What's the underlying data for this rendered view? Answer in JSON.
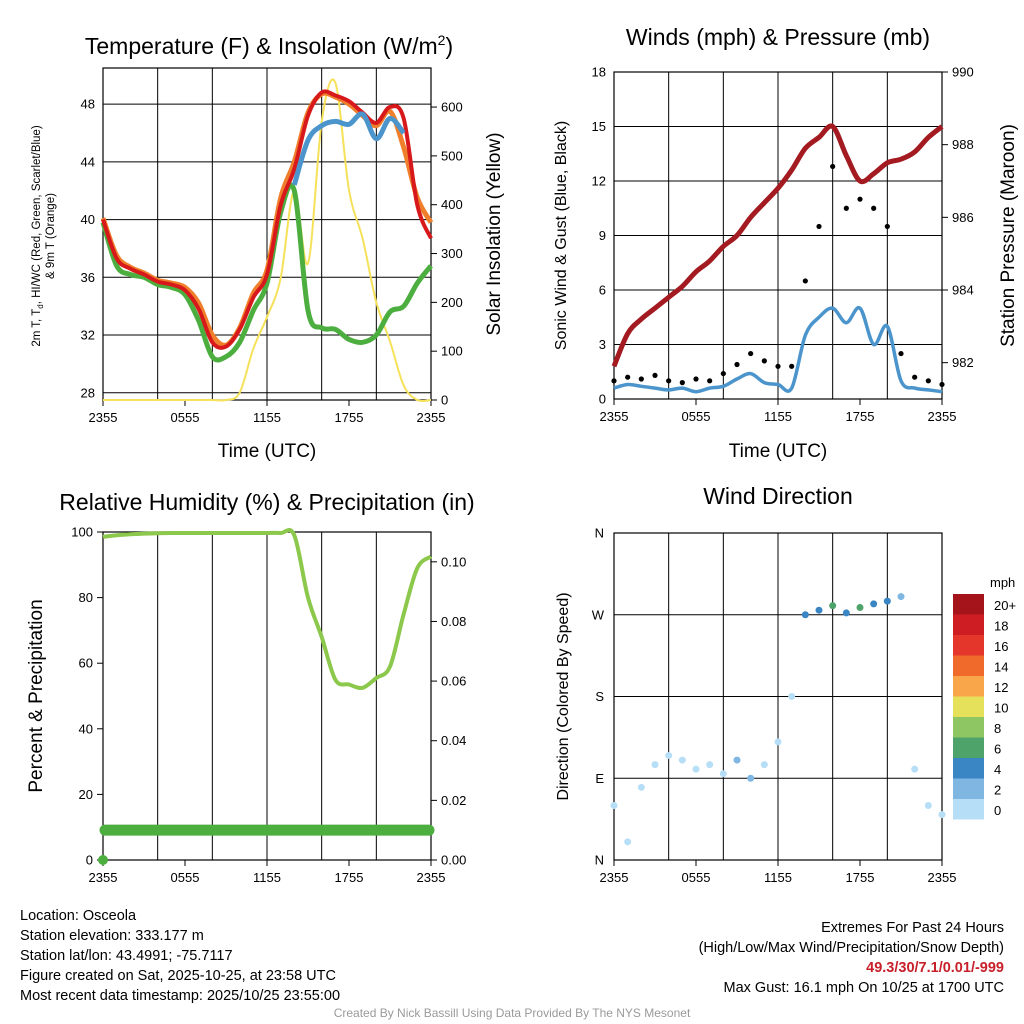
{
  "x_ticks": [
    "2355",
    "0555",
    "1155",
    "1755",
    "2355"
  ],
  "charts": {
    "temperature": {
      "type": "line",
      "title_main": "Temperature (F) & Insolation (W/m",
      "title_sup": "2",
      "title_close": ")",
      "xlabel": "Time (UTC)",
      "ylabel_left_1": "2m T, T",
      "ylabel_left_sub": "d",
      "ylabel_left_2": ", HI/WC (Red, Green, Scarlet/Blue)",
      "ylabel_left_3": "& 9m T (Orange)",
      "ylabel_right": "Solar Insolation (Yellow)",
      "ylim_left": [
        27.5,
        50.5
      ],
      "yticks_left": [
        28,
        32,
        36,
        40,
        44,
        48
      ],
      "ylim_right": [
        0,
        680
      ],
      "yticks_right": [
        0,
        100,
        200,
        300,
        400,
        500,
        600
      ],
      "colors": {
        "temp_2m": "#d7191c",
        "dewpoint": "#4cae3f",
        "heat_index": "#4b95cc",
        "temp_9m": "#f07f2b",
        "solar": "#f5e15a"
      }
    },
    "winds": {
      "type": "line",
      "title": "Winds (mph) & Pressure (mb)",
      "xlabel": "Time (UTC)",
      "ylabel_left": "Sonic Wind & Gust (Blue, Black)",
      "ylabel_right": "Station Pressure (Maroon)",
      "ylim_left": [
        0,
        18
      ],
      "yticks_left": [
        0,
        3,
        6,
        9,
        12,
        15,
        18
      ],
      "ylim_right": [
        981,
        990
      ],
      "yticks_right": [
        982,
        984,
        986,
        988,
        990
      ],
      "colors": {
        "wind": "#4b95cc",
        "gust": "#000000",
        "pressure": "#a31b20"
      }
    },
    "humidity": {
      "type": "line",
      "title": "Relative Humidity (%) & Precipitation (in)",
      "ylabel_left": "Percent & Precipitation",
      "ylim_left": [
        0,
        100
      ],
      "yticks_left": [
        0,
        20,
        40,
        60,
        80,
        100
      ],
      "ylim_right": [
        0,
        0.11
      ],
      "yticks_right": [
        "0.00",
        "0.02",
        "0.04",
        "0.06",
        "0.08",
        "0.10"
      ],
      "precip_value": 0.01,
      "colors": {
        "rh": "#8cc84b",
        "precip": "#4cae3f"
      }
    },
    "direction": {
      "type": "scatter",
      "title": "Wind Direction",
      "ylabel_left": "Direction (Colored By Speed)",
      "ylim_deg": [
        0,
        360
      ],
      "yticks": [
        "N",
        "E",
        "S",
        "W",
        "N"
      ],
      "legend_title": "mph",
      "legend_labels": [
        "20+",
        "18",
        "16",
        "14",
        "12",
        "10",
        "8",
        "6",
        "4",
        "2",
        "0"
      ],
      "legend_colors": [
        "#a5141b",
        "#cf1e23",
        "#e4362b",
        "#f06a2c",
        "#f9a54a",
        "#e6e15a",
        "#8dc663",
        "#4ea36a",
        "#3a85c4",
        "#7fb6e2",
        "#b7def7"
      ]
    }
  },
  "chart_data": [
    {
      "type": "line",
      "title": "Temperature (F) & Insolation (W/m2)",
      "x": [
        0,
        1,
        2,
        3,
        4,
        5,
        6,
        7,
        8,
        9,
        10,
        11,
        12,
        13,
        14,
        15,
        16,
        17,
        18,
        19,
        20,
        21,
        22,
        23,
        24
      ],
      "series": [
        {
          "name": "2m T (Red)",
          "values": [
            40.0,
            37.3,
            36.6,
            36.2,
            35.7,
            35.5,
            35.1,
            33.8,
            31.5,
            31.2,
            32.4,
            34.6,
            36.2,
            41.0,
            43.5,
            47.2,
            48.8,
            48.6,
            48.2,
            47.4,
            46.7,
            47.8,
            47.0,
            41.0,
            38.7
          ]
        },
        {
          "name": "Td (Green)",
          "values": [
            39.8,
            36.8,
            36.2,
            36.0,
            35.5,
            35.3,
            34.8,
            33.0,
            30.5,
            30.5,
            31.5,
            33.7,
            35.6,
            40.5,
            42.0,
            33.7,
            32.5,
            32.4,
            31.7,
            31.5,
            32.0,
            33.6,
            34.0,
            35.6,
            36.8
          ]
        },
        {
          "name": "HI/WC (Blue)",
          "values": [
            null,
            null,
            null,
            null,
            null,
            null,
            null,
            null,
            null,
            null,
            null,
            null,
            null,
            null,
            42.4,
            45.5,
            46.5,
            46.8,
            46.6,
            47.3,
            45.6,
            47.0,
            46.0,
            null,
            null
          ]
        },
        {
          "name": "9m T (Orange)",
          "values": [
            40.1,
            37.5,
            36.7,
            36.3,
            35.8,
            35.6,
            35.3,
            34.2,
            32.0,
            31.3,
            32.5,
            34.9,
            36.5,
            41.5,
            44.0,
            47.4,
            48.7,
            48.5,
            48.0,
            47.2,
            46.5,
            47.5,
            45.0,
            41.5,
            39.8
          ]
        },
        {
          "name": "Solar (Yellow)",
          "values": [
            0,
            0,
            0,
            0,
            0,
            0,
            0,
            0,
            0,
            0,
            15,
            105,
            170,
            250,
            430,
            280,
            570,
            650,
            430,
            330,
            200,
            120,
            30,
            0,
            0
          ]
        }
      ],
      "xlabel": "Time (UTC)",
      "ylabel": "Temperature (F)",
      "ylim": [
        27.5,
        50.5
      ],
      "y2lim": [
        0,
        680
      ]
    },
    {
      "type": "line",
      "title": "Winds (mph) & Pressure (mb)",
      "x": [
        0,
        1,
        2,
        3,
        4,
        5,
        6,
        7,
        8,
        9,
        10,
        11,
        12,
        13,
        14,
        15,
        16,
        17,
        18,
        19,
        20,
        21,
        22,
        23,
        24
      ],
      "series": [
        {
          "name": "Sonic Wind (Blue)",
          "values": [
            0.6,
            0.8,
            0.7,
            0.6,
            0.5,
            0.6,
            0.4,
            0.6,
            0.7,
            1.1,
            1.4,
            0.9,
            0.8,
            0.6,
            3.5,
            4.5,
            5.0,
            4.2,
            5.0,
            3.0,
            4.0,
            1.0,
            0.6,
            0.5,
            0.4
          ]
        },
        {
          "name": "Gust (Black)",
          "values": [
            1.0,
            1.2,
            1.1,
            1.3,
            1.0,
            0.9,
            1.1,
            1.0,
            1.4,
            1.9,
            2.5,
            2.1,
            1.8,
            1.8,
            6.5,
            9.5,
            12.8,
            10.5,
            11.0,
            10.5,
            9.5,
            2.5,
            1.2,
            1.0,
            0.8
          ]
        },
        {
          "name": "Station Pressure (Maroon)",
          "values": [
            981.9,
            982.8,
            983.2,
            983.5,
            983.8,
            984.1,
            984.5,
            984.8,
            985.2,
            985.5,
            986.0,
            986.4,
            986.8,
            987.3,
            987.9,
            988.2,
            988.5,
            987.7,
            987.0,
            987.2,
            987.5,
            987.6,
            987.8,
            988.2,
            988.5
          ]
        }
      ],
      "xlabel": "Time (UTC)",
      "ylabel": "Wind (mph)",
      "ylim": [
        0,
        18
      ],
      "y2lim": [
        981,
        990
      ]
    },
    {
      "type": "line",
      "title": "Relative Humidity (%) & Precipitation (in)",
      "x": [
        0,
        1,
        2,
        3,
        4,
        5,
        6,
        7,
        8,
        9,
        10,
        11,
        12,
        13,
        14,
        15,
        16,
        17,
        18,
        19,
        20,
        21,
        22,
        23,
        24
      ],
      "series": [
        {
          "name": "Relative Humidity",
          "values": [
            98.5,
            99.0,
            99.3,
            99.5,
            99.6,
            99.7,
            99.7,
            99.7,
            99.7,
            99.7,
            99.7,
            99.7,
            99.7,
            99.7,
            99.0,
            80.0,
            68.0,
            55.0,
            53.5,
            52.5,
            55.5,
            59.0,
            75.0,
            89.0,
            92.5
          ]
        },
        {
          "name": "Precipitation",
          "values": [
            0.0,
            0.01,
            0.01,
            0.01,
            0.01,
            0.01,
            0.01,
            0.01,
            0.01,
            0.01,
            0.01,
            0.01,
            0.01,
            0.01,
            0.01,
            0.01,
            0.01,
            0.01,
            0.01,
            0.01,
            0.01,
            0.01,
            0.01,
            0.01,
            0.01
          ]
        }
      ],
      "ylabel": "Percent & Precipitation",
      "ylim": [
        0,
        100
      ],
      "y2lim": [
        0,
        0.11
      ]
    },
    {
      "type": "scatter",
      "title": "Wind Direction",
      "x": [
        0,
        1,
        2,
        3,
        4,
        5,
        6,
        7,
        8,
        9,
        10,
        11,
        12,
        13,
        14,
        15,
        16,
        17,
        18,
        19,
        20,
        21,
        22,
        23,
        24
      ],
      "series": [
        {
          "name": "Direction (deg)",
          "values": [
            60,
            20,
            80,
            105,
            115,
            110,
            100,
            105,
            95,
            110,
            90,
            105,
            130,
            180,
            270,
            275,
            280,
            272,
            278,
            282,
            285,
            290,
            100,
            60,
            50
          ]
        },
        {
          "name": "Speed (mph)",
          "values": [
            0.6,
            0.8,
            0.7,
            0.6,
            0.5,
            0.6,
            0.4,
            0.6,
            0.7,
            1.1,
            1.4,
            0.9,
            0.8,
            0.6,
            3.5,
            4.5,
            5.0,
            4.2,
            5.0,
            3.0,
            4.0,
            1.0,
            0.6,
            0.5,
            0.4
          ]
        }
      ],
      "ylabel": "Direction (Colored By Speed)",
      "ylim": [
        0,
        360
      ]
    }
  ],
  "info": {
    "location": "Location: Osceola",
    "elevation": "Station elevation: 333.177 m",
    "latlon": "Station lat/lon: 43.4991; -75.7117",
    "created": "Figure created on Sat, 2025-10-25, at 23:58 UTC",
    "recent": "Most recent data timestamp: 2025/10/25 23:55:00"
  },
  "extremes": {
    "title": "Extremes For Past 24 Hours",
    "subtitle": "(High/Low/Max Wind/Precipitation/Snow Depth)",
    "values": "49.3/30/7.1/0.01/-999",
    "gust": "Max Gust: 16.1 mph On 10/25 at 1700 UTC"
  },
  "credit": "Created By Nick Bassill Using Data Provided By The NYS Mesonet"
}
